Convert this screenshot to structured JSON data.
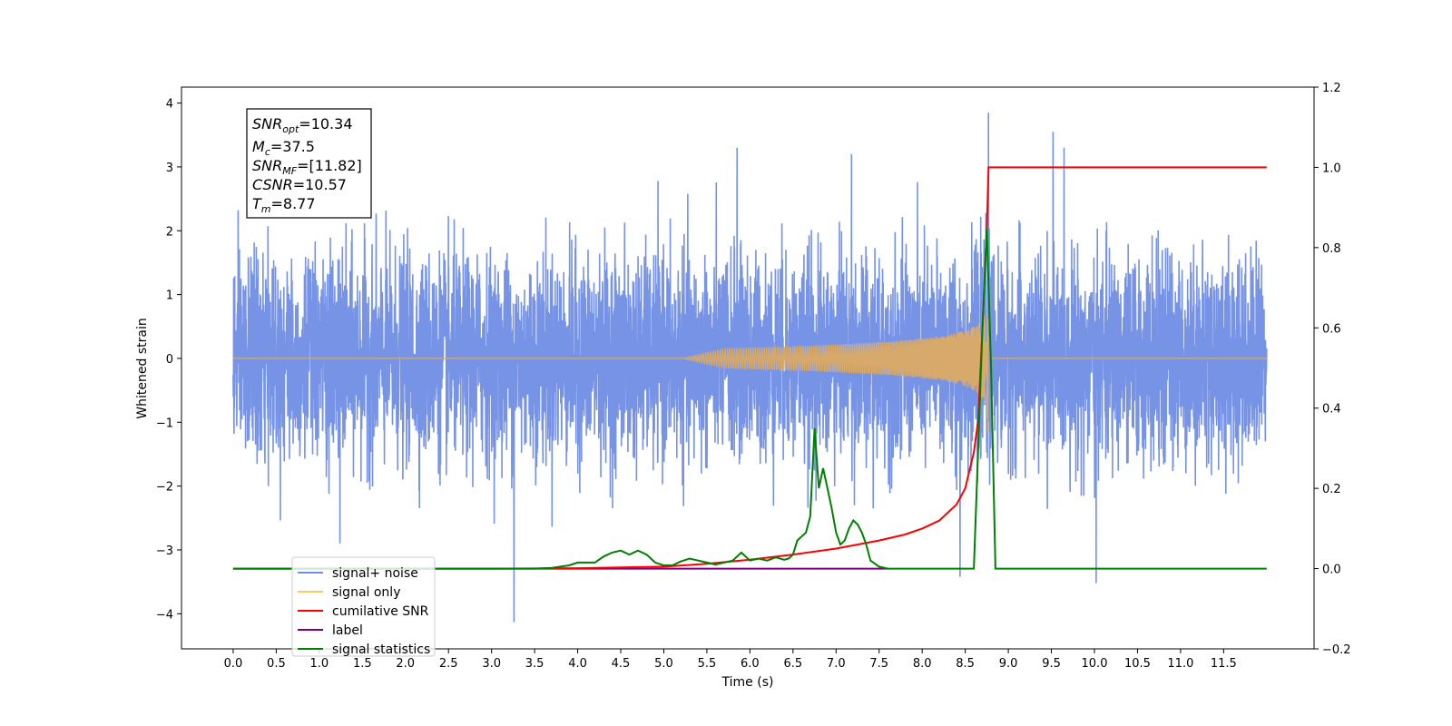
{
  "chart_data": {
    "type": "line",
    "xlabel": "Time (s)",
    "ylabel": "Whitened strain",
    "xlim": [
      -0.6,
      12.55
    ],
    "ylim": [
      -4.55,
      4.25
    ],
    "y2lim": [
      -0.2,
      1.2
    ],
    "xticks": [
      "0.0",
      "0.5",
      "1.0",
      "1.5",
      "2.0",
      "2.5",
      "3.0",
      "3.5",
      "4.0",
      "4.5",
      "5.0",
      "5.5",
      "6.0",
      "6.5",
      "7.0",
      "7.5",
      "8.0",
      "8.5",
      "9.0",
      "9.5",
      "10.0",
      "10.5",
      "11.0",
      "11.5"
    ],
    "yticks": [
      "4",
      "3",
      "2",
      "1",
      "0",
      "−1",
      "−2",
      "−3",
      "−4"
    ],
    "y2ticks": [
      "1.2",
      "1.0",
      "0.8",
      "0.6",
      "0.4",
      "0.2",
      "0.0",
      "−0.2"
    ],
    "info_box": {
      "snr_opt": {
        "symbol": "SNR",
        "sub": "opt",
        "value": "=10.34"
      },
      "mc": {
        "symbol": "M",
        "sub": "c",
        "value": "=37.5"
      },
      "snr_mf": {
        "symbol": "SNR",
        "sub": "MF",
        "value": "=[11.82]"
      },
      "csnr": {
        "symbol": "CSNR",
        "sub": "",
        "value": "=10.57"
      },
      "tm": {
        "symbol": "T",
        "sub": "m",
        "value": "=8.77"
      }
    },
    "legend": {
      "placement": "lower-left",
      "entries": [
        {
          "label": "signal+ noise",
          "color": "#6f8de5"
        },
        {
          "label": "signal only",
          "color": "#ffc864"
        },
        {
          "label": "cumilative SNR",
          "color": "#ff0000"
        },
        {
          "label": "label",
          "color": "#7a007a"
        },
        {
          "label": "signal statistics",
          "color": "#008000"
        }
      ]
    },
    "series": [
      {
        "name": "signal+ noise",
        "axis": "left",
        "color": "#6f8de5",
        "duration": 12.0,
        "peak_time": 8.77,
        "typical_amplitude": 2.3,
        "min": -4.13,
        "max": 3.85
      },
      {
        "name": "signal only",
        "axis": "left",
        "color": "#d7a96a",
        "start": 5.2,
        "merger": 8.77,
        "max_amplitude": 1.3
      },
      {
        "name": "cumilative SNR",
        "axis": "right",
        "x": [
          0.0,
          3.0,
          4.0,
          5.0,
          5.5,
          6.0,
          6.5,
          7.0,
          7.5,
          7.8,
          8.0,
          8.2,
          8.4,
          8.5,
          8.6,
          8.65,
          8.7,
          8.75,
          8.77,
          8.8,
          12.0
        ],
        "y": [
          0.0,
          0.0,
          0.001,
          0.005,
          0.012,
          0.022,
          0.035,
          0.05,
          0.07,
          0.085,
          0.1,
          0.12,
          0.16,
          0.2,
          0.29,
          0.37,
          0.6,
          0.85,
          1.0,
          1.0,
          1.0
        ]
      },
      {
        "name": "label",
        "axis": "right",
        "color": "#7a007a",
        "x": [
          0.0,
          7.6
        ],
        "y": [
          0.0,
          0.0
        ]
      },
      {
        "name": "signal statistics",
        "axis": "right",
        "x": [
          0.0,
          3.5,
          3.7,
          3.9,
          4.0,
          4.2,
          4.3,
          4.4,
          4.5,
          4.6,
          4.7,
          4.8,
          4.9,
          5.0,
          5.1,
          5.2,
          5.3,
          5.4,
          5.5,
          5.6,
          5.7,
          5.8,
          5.9,
          6.0,
          6.1,
          6.2,
          6.3,
          6.4,
          6.45,
          6.5,
          6.55,
          6.6,
          6.65,
          6.7,
          6.75,
          6.8,
          6.85,
          6.9,
          6.95,
          7.0,
          7.05,
          7.1,
          7.15,
          7.2,
          7.25,
          7.3,
          7.35,
          7.4,
          7.5,
          7.6,
          7.8,
          8.5,
          8.6,
          8.65,
          8.7,
          8.75,
          8.8,
          8.85,
          12.0
        ],
        "y": [
          0.0,
          0.0,
          0.002,
          0.008,
          0.015,
          0.015,
          0.03,
          0.04,
          0.045,
          0.035,
          0.045,
          0.035,
          0.015,
          0.008,
          0.008,
          0.018,
          0.025,
          0.02,
          0.015,
          0.01,
          0.015,
          0.02,
          0.04,
          0.02,
          0.025,
          0.02,
          0.028,
          0.022,
          0.025,
          0.035,
          0.07,
          0.08,
          0.09,
          0.13,
          0.35,
          0.2,
          0.25,
          0.2,
          0.15,
          0.09,
          0.06,
          0.07,
          0.1,
          0.12,
          0.11,
          0.09,
          0.06,
          0.02,
          0.005,
          0.0,
          0.0,
          0.0,
          0.0,
          0.3,
          0.6,
          0.85,
          0.5,
          0.0,
          0.0
        ]
      }
    ]
  }
}
